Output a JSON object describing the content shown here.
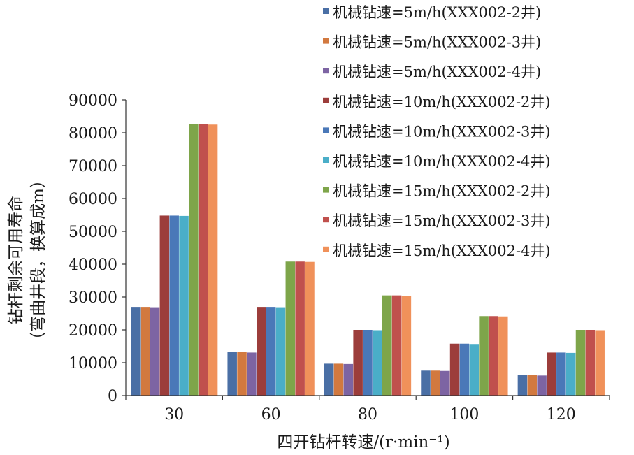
{
  "chart_data": {
    "type": "bar",
    "xlabel": "四开钻杆转速/(r·min⁻¹)",
    "ylabel_line1": "钻杆剩余可用寿命",
    "ylabel_line2": "（弯曲井段，换算成m）",
    "ylim": [
      0,
      90000
    ],
    "yticks": [
      0,
      10000,
      20000,
      30000,
      40000,
      50000,
      60000,
      70000,
      80000,
      90000
    ],
    "grid": false,
    "legend_position": "top-right",
    "categories": [
      "30",
      "60",
      "80",
      "100",
      "120"
    ],
    "series": [
      {
        "name": "机械钻速=5m/h(XXX002-2井)",
        "color": "#4a6fa5",
        "values": [
          27000,
          13200,
          9700,
          7600,
          6200
        ]
      },
      {
        "name": "机械钻速=5m/h(XXX002-3井)",
        "color": "#d2793f",
        "values": [
          27000,
          13200,
          9700,
          7600,
          6200
        ]
      },
      {
        "name": "机械钻速=5m/h(XXX002-4井)",
        "color": "#7d64a3",
        "values": [
          26900,
          13100,
          9600,
          7500,
          6100
        ]
      },
      {
        "name": "机械钻速=10m/h(XXX002-2井)",
        "color": "#9c3d3b",
        "values": [
          54800,
          27000,
          20000,
          15800,
          13100
        ]
      },
      {
        "name": "机械钻速=10m/h(XXX002-3井)",
        "color": "#4a78b8",
        "values": [
          54800,
          27000,
          20000,
          15800,
          13100
        ]
      },
      {
        "name": "机械钻速=10m/h(XXX002-4井)",
        "color": "#4aaec8",
        "values": [
          54700,
          26900,
          19900,
          15700,
          13000
        ]
      },
      {
        "name": "机械钻速=15m/h(XXX002-2井)",
        "color": "#7ea54a",
        "values": [
          82600,
          40800,
          30500,
          24200,
          20000
        ]
      },
      {
        "name": "机械钻速=15m/h(XXX002-3井)",
        "color": "#c0504d",
        "values": [
          82600,
          40800,
          30500,
          24200,
          20000
        ]
      },
      {
        "name": "机械钻速=15m/h(XXX002-4井)",
        "color": "#f0915a",
        "values": [
          82500,
          40700,
          30400,
          24100,
          19900
        ]
      }
    ]
  }
}
